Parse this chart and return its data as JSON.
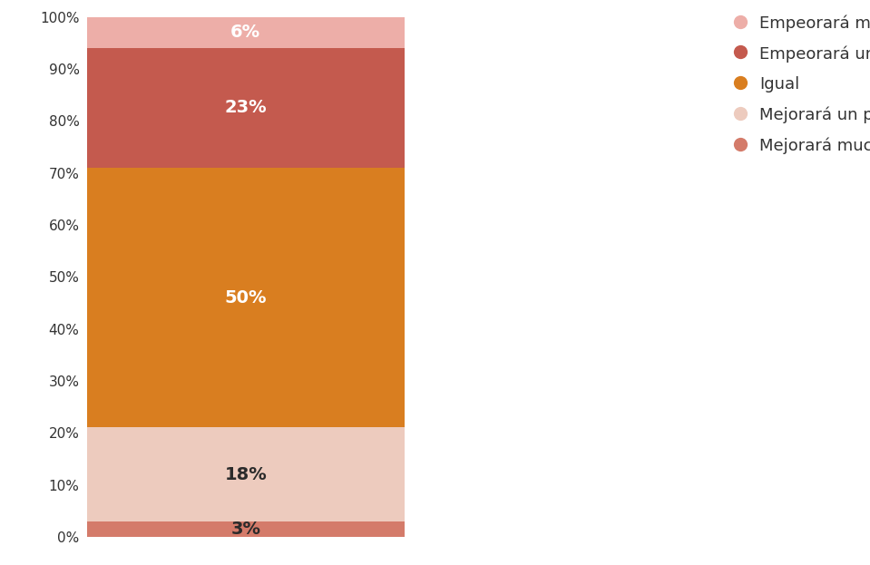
{
  "segments": [
    {
      "label": "Mejorará mucho",
      "value": 3,
      "color": "#D47B6A",
      "text_color": "#2b2b2b"
    },
    {
      "label": "Mejorará un poco",
      "value": 18,
      "color": "#EDCBBE",
      "text_color": "#2b2b2b"
    },
    {
      "label": "Igual",
      "value": 50,
      "color": "#D97E20",
      "text_color": "#ffffff"
    },
    {
      "label": "Empeorará un poco",
      "value": 23,
      "color": "#C45A4E",
      "text_color": "#ffffff"
    },
    {
      "label": "Empeorará más",
      "value": 6,
      "color": "#EDAEA8",
      "text_color": "#ffffff"
    }
  ],
  "legend_order": [
    {
      "label": "Empeorará más",
      "color": "#EDAEA8"
    },
    {
      "label": "Empeorará un poco",
      "color": "#C45A4E"
    },
    {
      "label": "Igual",
      "color": "#D97E20"
    },
    {
      "label": "Mejorará un poco",
      "color": "#EDCBBE"
    },
    {
      "label": "Mejorará mucho",
      "color": "#D47B6A"
    }
  ],
  "background_color": "#ffffff",
  "grid_color": "#CC3333",
  "yticks": [
    0,
    10,
    20,
    30,
    40,
    50,
    60,
    70,
    80,
    90,
    100
  ],
  "figsize": [
    9.59,
    6.23
  ],
  "dpi": 100
}
